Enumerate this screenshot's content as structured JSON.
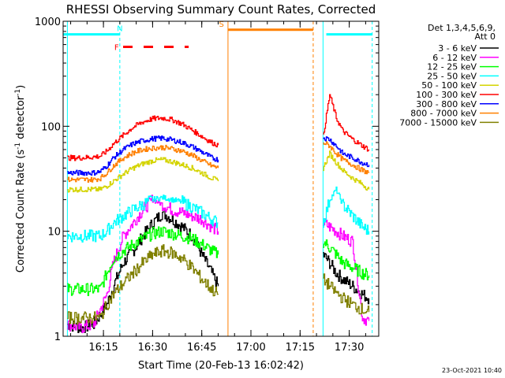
{
  "chart_data": {
    "type": "line",
    "title": "RHESSI Observing Summary Count Rates, Corrected",
    "xlabel": "Start Time (20-Feb-13 16:02:42)",
    "ylabel": "Corrected Count Rate (s",
    "ylabel_sup1": "-1",
    "ylabel_mid": " detector",
    "ylabel_sup2": "-1",
    "ylabel_end": ")",
    "x_start": "16:02:42",
    "x_end": "17:39:00",
    "x_ticks": [
      {
        "t": "16:15",
        "label": "16:15"
      },
      {
        "t": "16:30",
        "label": "16:30"
      },
      {
        "t": "16:45",
        "label": "16:45"
      },
      {
        "t": "17:00",
        "label": "17:00"
      },
      {
        "t": "17:15",
        "label": "17:15"
      },
      {
        "t": "17:30",
        "label": "17:30"
      }
    ],
    "y_scale": "log",
    "ylim": [
      1,
      1000
    ],
    "y_ticks": [
      {
        "v": 1,
        "label": "1"
      },
      {
        "v": 10,
        "label": "10"
      },
      {
        "v": 100,
        "label": "100"
      },
      {
        "v": 1000,
        "label": "1000"
      }
    ],
    "legend_header": [
      "Det 1,3,4,5,6,9,",
      "Att 0"
    ],
    "series": [
      {
        "name": "3 - 6 keV",
        "color": "#000000",
        "x": [
          "16:04",
          "16:08",
          "16:12",
          "16:16",
          "16:18",
          "16:21",
          "16:24",
          "16:27",
          "16:30",
          "16:33",
          "16:36",
          "16:39",
          "16:42",
          "16:45",
          "16:48",
          "16:50",
          "17:22",
          "17:24",
          "17:26",
          "17:28",
          "17:31",
          "17:34",
          "17:36"
        ],
        "y": [
          1.3,
          1.2,
          1.3,
          2.0,
          3.0,
          5.0,
          6.5,
          9.0,
          12,
          15,
          13,
          11,
          9,
          6,
          4,
          3,
          6,
          5,
          4,
          3.5,
          3,
          2.5,
          2.3
        ]
      },
      {
        "name": "6 - 12 keV",
        "color": "#ff00ff",
        "x": [
          "16:04",
          "16:08",
          "16:12",
          "16:16",
          "16:18",
          "16:21",
          "16:24",
          "16:27",
          "16:30",
          "16:33",
          "16:36",
          "16:39",
          "16:42",
          "16:45",
          "16:48",
          "16:50",
          "17:22",
          "17:24",
          "17:26",
          "17:28",
          "17:31",
          "17:34",
          "17:36"
        ],
        "y": [
          1.3,
          1.2,
          1.3,
          2.5,
          5.0,
          9.0,
          12,
          16,
          20,
          18,
          16,
          15,
          14,
          13,
          11,
          10,
          12,
          11,
          10,
          9,
          8,
          1.5,
          1.4
        ]
      },
      {
        "name": "12 - 25 keV",
        "color": "#00ff00",
        "x": [
          "16:04",
          "16:08",
          "16:12",
          "16:14",
          "16:16",
          "16:18",
          "16:21",
          "16:24",
          "16:27",
          "16:30",
          "16:33",
          "16:36",
          "16:39",
          "16:42",
          "16:45",
          "16:48",
          "16:50",
          "17:22",
          "17:24",
          "17:26",
          "17:28",
          "17:31",
          "17:34",
          "17:36"
        ],
        "y": [
          2.8,
          2.8,
          2.8,
          2.8,
          4.0,
          5.5,
          6.5,
          7.5,
          8.5,
          9.5,
          10,
          9.5,
          9,
          8.5,
          7.5,
          6.5,
          6,
          8,
          7,
          6,
          5,
          4.5,
          4,
          3.8
        ]
      },
      {
        "name": "25 - 50 keV",
        "color": "#00ffff",
        "x": [
          "16:04",
          "16:08",
          "16:12",
          "16:14",
          "16:16",
          "16:18",
          "16:21",
          "16:24",
          "16:27",
          "16:30",
          "16:33",
          "16:36",
          "16:39",
          "16:42",
          "16:45",
          "16:48",
          "16:50",
          "17:22",
          "17:24",
          "17:26",
          "17:28",
          "17:31",
          "17:34",
          "17:36"
        ],
        "y": [
          9,
          9,
          9,
          9,
          10,
          12,
          14,
          16,
          18,
          20,
          21,
          20,
          19,
          17,
          15,
          13,
          12,
          12,
          20,
          25,
          18,
          14,
          11,
          10
        ]
      },
      {
        "name": "50 - 100 keV",
        "color": "#d4d400",
        "x": [
          "16:04",
          "16:08",
          "16:12",
          "16:14",
          "16:16",
          "16:18",
          "16:21",
          "16:24",
          "16:27",
          "16:30",
          "16:33",
          "16:36",
          "16:39",
          "16:42",
          "16:45",
          "16:48",
          "16:50",
          "17:22",
          "17:24",
          "17:26",
          "17:28",
          "17:31",
          "17:34",
          "17:36"
        ],
        "y": [
          25,
          25,
          25,
          25,
          27,
          30,
          35,
          40,
          44,
          47,
          48,
          46,
          43,
          40,
          36,
          32,
          30,
          40,
          55,
          45,
          38,
          32,
          28,
          25
        ]
      },
      {
        "name": "100 - 300 keV",
        "color": "#ff0000",
        "x": [
          "16:04",
          "16:08",
          "16:12",
          "16:14",
          "16:16",
          "16:18",
          "16:21",
          "16:24",
          "16:27",
          "16:30",
          "16:33",
          "16:36",
          "16:39",
          "16:42",
          "16:45",
          "16:48",
          "16:50",
          "17:22",
          "17:24",
          "17:26",
          "17:28",
          "17:31",
          "17:34",
          "17:36"
        ],
        "y": [
          50,
          50,
          51,
          52,
          58,
          68,
          82,
          98,
          110,
          118,
          120,
          115,
          105,
          92,
          80,
          70,
          66,
          80,
          200,
          120,
          90,
          75,
          65,
          60
        ]
      },
      {
        "name": "300 - 800 keV",
        "color": "#0000ff",
        "x": [
          "16:04",
          "16:08",
          "16:12",
          "16:14",
          "16:16",
          "16:18",
          "16:21",
          "16:24",
          "16:27",
          "16:30",
          "16:33",
          "16:36",
          "16:39",
          "16:42",
          "16:45",
          "16:48",
          "16:50",
          "17:22",
          "17:24",
          "17:26",
          "17:28",
          "17:31",
          "17:34",
          "17:36"
        ],
        "y": [
          36,
          36,
          36,
          37,
          42,
          50,
          60,
          68,
          73,
          76,
          77,
          74,
          70,
          64,
          57,
          50,
          48,
          78,
          75,
          65,
          55,
          50,
          45,
          43
        ]
      },
      {
        "name": "800 - 7000 keV",
        "color": "#ff8000",
        "x": [
          "16:04",
          "16:08",
          "16:12",
          "16:14",
          "16:16",
          "16:18",
          "16:21",
          "16:24",
          "16:27",
          "16:30",
          "16:33",
          "16:36",
          "16:39",
          "16:42",
          "16:45",
          "16:48",
          "16:50",
          "17:22",
          "17:24",
          "17:26",
          "17:28",
          "17:31",
          "17:34",
          "17:36"
        ],
        "y": [
          31,
          31,
          31,
          32,
          36,
          42,
          50,
          56,
          60,
          62,
          63,
          61,
          58,
          53,
          47,
          42,
          40,
          70,
          65,
          55,
          48,
          43,
          38,
          36
        ]
      },
      {
        "name": "7000 - 15000 keV",
        "color": "#808000",
        "x": [
          "16:04",
          "16:08",
          "16:12",
          "16:14",
          "16:16",
          "16:18",
          "16:21",
          "16:24",
          "16:27",
          "16:30",
          "16:33",
          "16:36",
          "16:39",
          "16:42",
          "16:45",
          "16:48",
          "16:50",
          "17:22",
          "17:24",
          "17:26",
          "17:28",
          "17:31",
          "17:34",
          "17:36"
        ],
        "y": [
          1.5,
          1.5,
          1.5,
          1.5,
          2.0,
          2.5,
          3.2,
          4.0,
          5.0,
          6.0,
          6.5,
          6.2,
          5.5,
          4.5,
          3.5,
          2.8,
          2.5,
          3.5,
          3.0,
          2.6,
          2.3,
          2.0,
          1.8,
          1.7
        ]
      }
    ],
    "bars": [
      {
        "label": "N",
        "color": "#00ffff",
        "level": 750,
        "from": "16:02:42",
        "to": "16:20",
        "style": "solid",
        "label_at": "16:20"
      },
      {
        "label": "",
        "color": "#00ffff",
        "level": 750,
        "from": "17:23",
        "to": "17:37",
        "style": "solid",
        "label_at": ""
      },
      {
        "label": "F",
        "color": "#ff0000",
        "level": 570,
        "from": "16:21",
        "to": "16:41",
        "style": "dashed",
        "label_at": "16:19"
      },
      {
        "label": "S",
        "color": "#ff8000",
        "level": 830,
        "from": "16:53",
        "to": "17:19",
        "style": "solid",
        "label_at": "16:51"
      }
    ],
    "vlines": [
      {
        "t": "16:04",
        "color": "#00ffff",
        "style": "solid"
      },
      {
        "t": "16:20",
        "color": "#00ffff",
        "style": "dashed"
      },
      {
        "t": "16:53",
        "color": "#ff8000",
        "style": "solid"
      },
      {
        "t": "17:19",
        "color": "#ff8000",
        "style": "dashed"
      },
      {
        "t": "17:22",
        "color": "#00ffff",
        "style": "solid"
      },
      {
        "t": "17:37",
        "color": "#00ffff",
        "style": "dashed"
      }
    ],
    "gap": {
      "from": "16:51",
      "to": "17:21"
    },
    "timestamp": "23-Oct-2021 10:40"
  }
}
